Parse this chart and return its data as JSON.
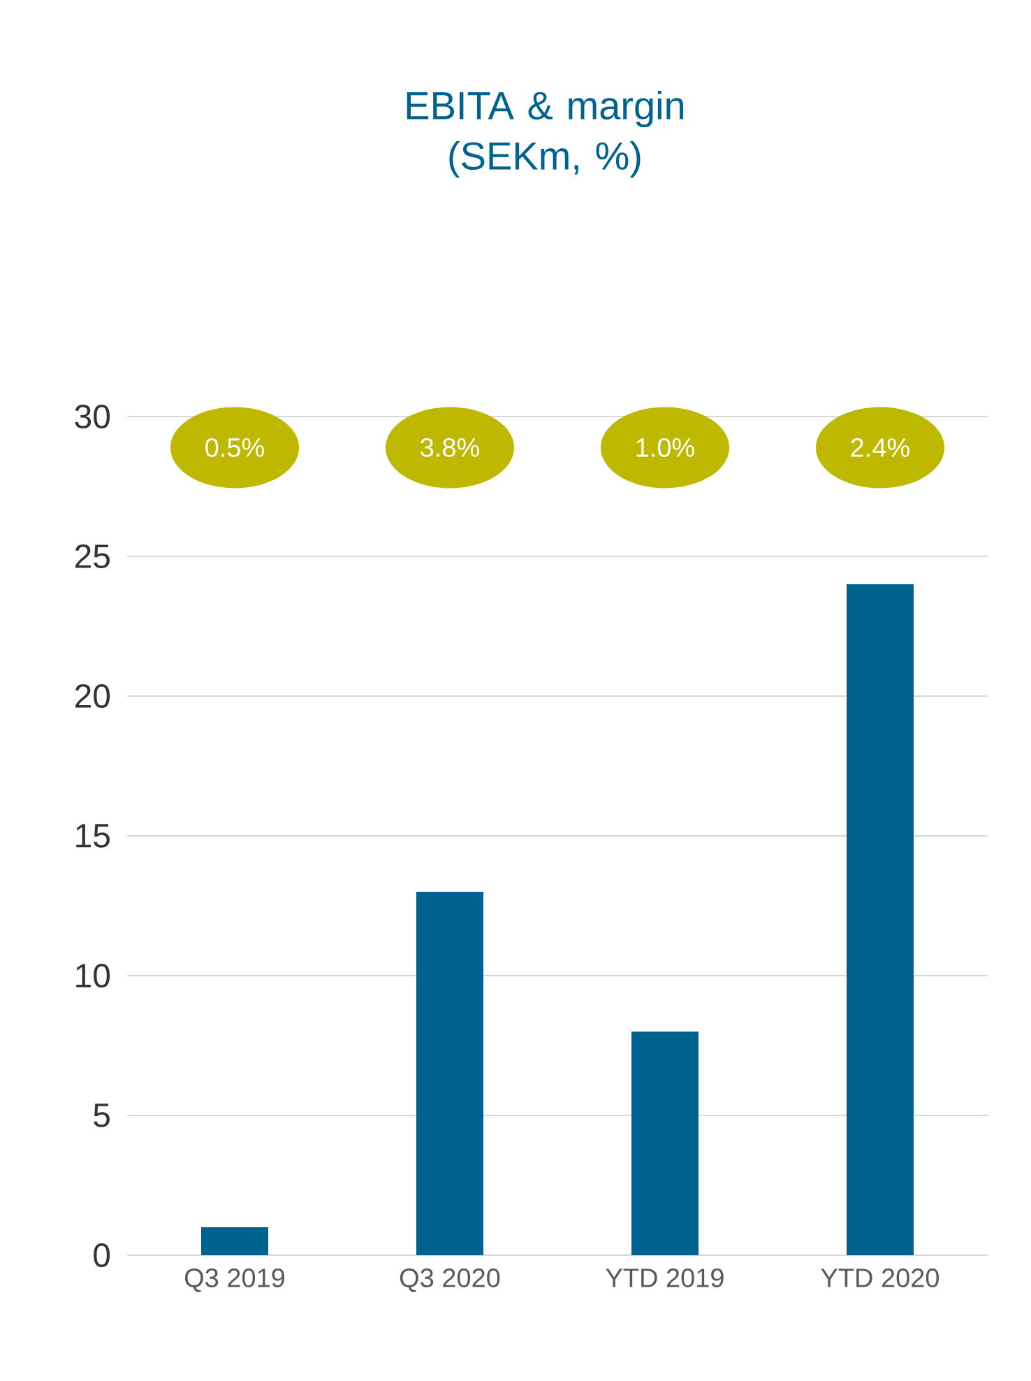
{
  "chart_data": {
    "type": "bar",
    "title": "EBITA & margin (SEKm, %)",
    "categories": [
      "Q3 2019",
      "Q3 2020",
      "YTD 2019",
      "YTD 2020"
    ],
    "values": [
      1,
      13,
      8,
      24
    ],
    "color": "#00628f",
    "ylim": [
      0,
      30
    ],
    "yticks": [
      0,
      5,
      10,
      15,
      20,
      25,
      30
    ],
    "grid": "y",
    "annotations": [
      "0.5%",
      "3.8%",
      "1.0%",
      "2.4%"
    ]
  }
}
